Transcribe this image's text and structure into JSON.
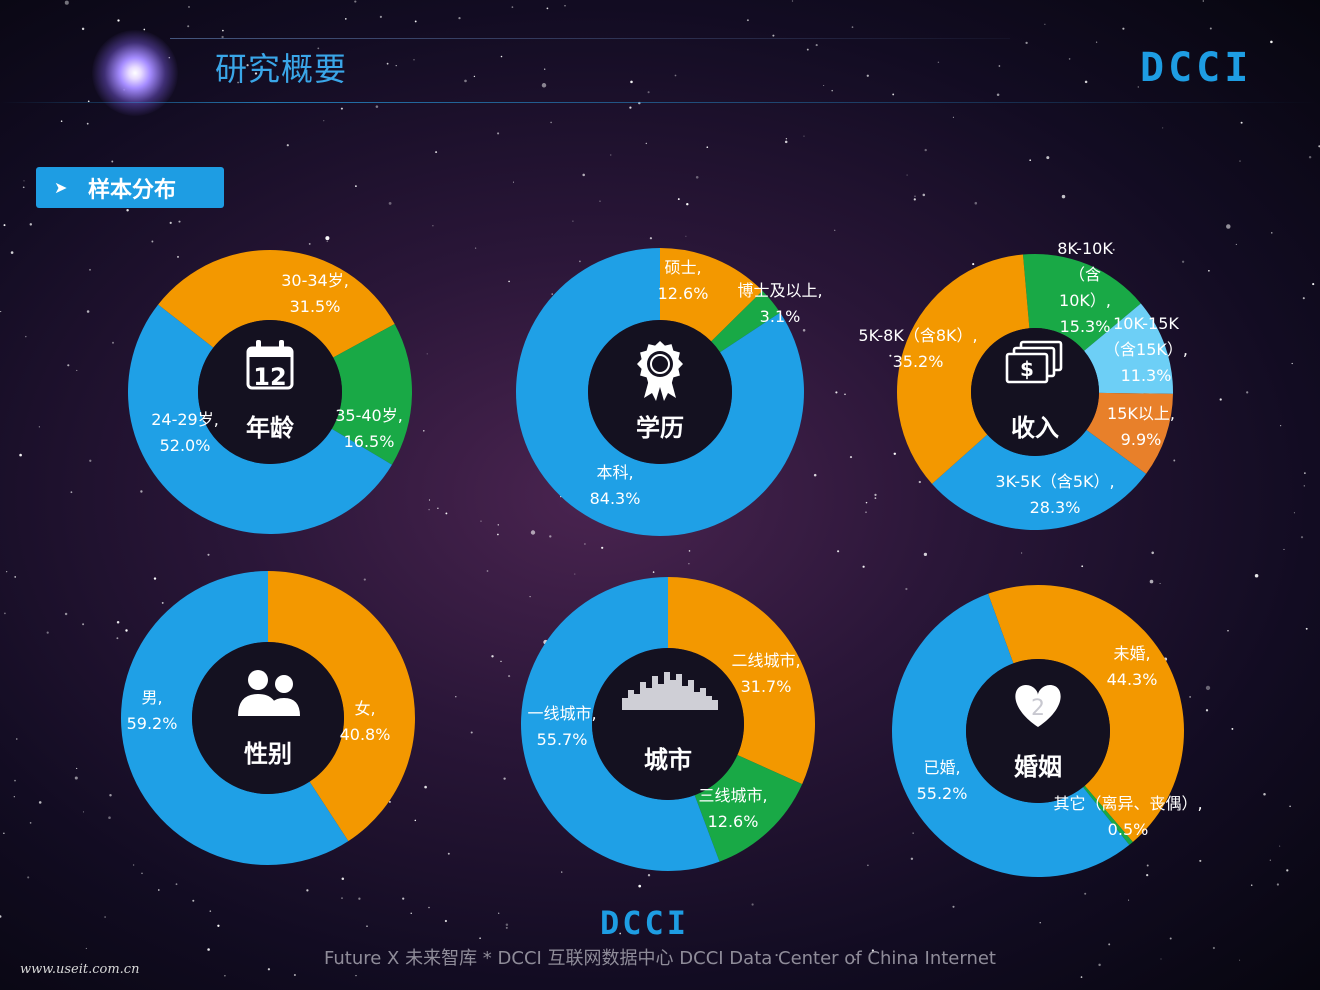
{
  "header": {
    "title": "研究概要",
    "logo_text": "DCCI"
  },
  "section": {
    "arrow": "➤",
    "label": "样本分布"
  },
  "colors": {
    "blue": "#1fa0e6",
    "orange": "#f39800",
    "green": "#19a946",
    "lightblue": "#6dcff6",
    "darkorange": "#e8802a",
    "hole": "#141120"
  },
  "chart_data": [
    {
      "type": "pie",
      "title": "年龄",
      "icon": "calendar-icon",
      "slices": [
        {
          "label": "30-34岁",
          "value": 31.5,
          "value_text": "31.5%",
          "color": "#f39800"
        },
        {
          "label": "35-40岁",
          "value": 16.5,
          "value_text": "16.5%",
          "color": "#19a946"
        },
        {
          "label": "24-29岁",
          "value": 52.0,
          "value_text": "52.0%",
          "color": "#1fa0e6"
        }
      ]
    },
    {
      "type": "pie",
      "title": "学历",
      "icon": "award-ribbon-icon",
      "slices": [
        {
          "label": "硕士",
          "value": 12.6,
          "value_text": "12.6%",
          "color": "#f39800"
        },
        {
          "label": "博士及以上",
          "value": 3.1,
          "value_text": "3.1%",
          "color": "#19a946"
        },
        {
          "label": "本科",
          "value": 84.3,
          "value_text": "84.3%",
          "color": "#1fa0e6"
        }
      ]
    },
    {
      "type": "pie",
      "title": "收入",
      "icon": "money-icon",
      "slices": [
        {
          "label": "8K-10K（含10K）",
          "value": 15.3,
          "value_text": "15.3%",
          "color": "#19a946"
        },
        {
          "label": "10K-15K（含15K）",
          "value": 11.3,
          "value_text": "11.3%",
          "color": "#6dcff6"
        },
        {
          "label": "15K以上",
          "value": 9.9,
          "value_text": "9.9%",
          "color": "#e8802a"
        },
        {
          "label": "3K-5K（含5K）",
          "value": 28.3,
          "value_text": "28.3%",
          "color": "#1fa0e6"
        },
        {
          "label": "5K-8K（含8K）",
          "value": 35.2,
          "value_text": "35.2%",
          "color": "#f39800"
        }
      ]
    },
    {
      "type": "pie",
      "title": "性别",
      "icon": "people-icon",
      "slices": [
        {
          "label": "女",
          "value": 40.8,
          "value_text": "40.8%",
          "color": "#f39800"
        },
        {
          "label": "男",
          "value": 59.2,
          "value_text": "59.2%",
          "color": "#1fa0e6"
        }
      ]
    },
    {
      "type": "pie",
      "title": "城市",
      "icon": "skyline-icon",
      "slices": [
        {
          "label": "二线城市",
          "value": 31.7,
          "value_text": "31.7%",
          "color": "#f39800"
        },
        {
          "label": "三线城市",
          "value": 12.6,
          "value_text": "12.6%",
          "color": "#19a946"
        },
        {
          "label": "一线城市",
          "value": 55.7,
          "value_text": "55.7%",
          "color": "#1fa0e6"
        }
      ]
    },
    {
      "type": "pie",
      "title": "婚姻",
      "icon": "heart-icon",
      "icon_text": "2",
      "slices": [
        {
          "label": "未婚",
          "value": 44.3,
          "value_text": "44.3%",
          "color": "#f39800"
        },
        {
          "label": "其它（离异、丧偶）",
          "value": 0.5,
          "value_text": "0.5%",
          "color": "#19a946"
        },
        {
          "label": "已婚",
          "value": 55.2,
          "value_text": "55.2%",
          "color": "#1fa0e6"
        }
      ]
    }
  ],
  "label_lines": [
    [
      "30-34岁,",
      "31.5%"
    ],
    [
      "35-40岁,",
      "16.5%"
    ],
    [
      "24-29岁,",
      "52.0%"
    ],
    [
      "硕士,",
      "12.6%"
    ],
    [
      "博士及以上,",
      "3.1%"
    ],
    [
      "本科,",
      "84.3%"
    ],
    [
      "8K-10K",
      "（含",
      "10K）,",
      "15.3%"
    ],
    [
      "10K-15K",
      "（含15K）,",
      "11.3%"
    ],
    [
      "15K以上,",
      "9.9%"
    ],
    [
      "3K-5K（含5K）,",
      "28.3%"
    ],
    [
      "5K-8K（含8K）,",
      "35.2%"
    ],
    [
      "女,",
      "40.8%"
    ],
    [
      "男,",
      "59.2%"
    ],
    [
      "二线城市,",
      "31.7%"
    ],
    [
      "三线城市,",
      "12.6%"
    ],
    [
      "一线城市,",
      "55.7%"
    ],
    [
      "未婚,",
      "44.3%"
    ],
    [
      "其它（离异、丧偶）,",
      "0.5%"
    ],
    [
      "已婚,",
      "55.2%"
    ]
  ],
  "footer": {
    "text": "Future X 未来智库 * DCCI 互联网数据中心 DCCI Data Center of China Internet",
    "watermark": "www.useit.com.cn",
    "logo_text": "DCCI"
  }
}
